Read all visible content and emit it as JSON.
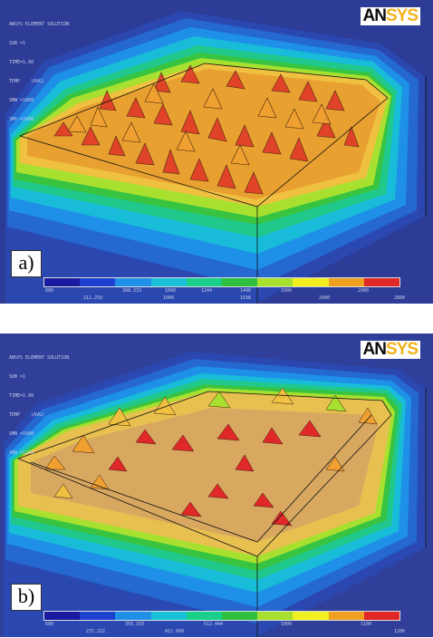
{
  "panels": [
    {
      "label": "a)",
      "info_lines": [
        "ANSYS ELEMENT SOLUTION",
        "SUB =1",
        "TIME=1.00",
        "TEMP    (AVG)",
        "SMN =1000",
        "SMX =2000"
      ],
      "logo_an": "AN",
      "logo_sys": "SYS",
      "ticks_upper": [
        "680",
        "388.333",
        "1000",
        "1244",
        "1490",
        "1900",
        "2900"
      ],
      "ticks_lower": [
        "211.250",
        "1000",
        "1598",
        "2000",
        "2880"
      ]
    },
    {
      "label": "b)",
      "info_lines": [
        "ANSYS ELEMENT SOLUTION",
        "SUB =1",
        "TIME=1.00",
        "TEMP    (AVG)",
        "SMN =1000",
        "SMX =1200"
      ],
      "logo_an": "AN",
      "logo_sys": "SYS",
      "ticks_upper": [
        "680",
        "356.333",
        "512.444",
        "1000",
        "1100"
      ],
      "ticks_lower": [
        "237.222",
        "411.999",
        "1200"
      ]
    }
  ],
  "colors": {
    "background": "#30409a",
    "colorbar": [
      "#1a1aa0",
      "#1e40d0",
      "#1e90e8",
      "#18c0d8",
      "#18d08a",
      "#30c040",
      "#a8e030",
      "#f0f020",
      "#f0a020",
      "#e02828"
    ]
  }
}
